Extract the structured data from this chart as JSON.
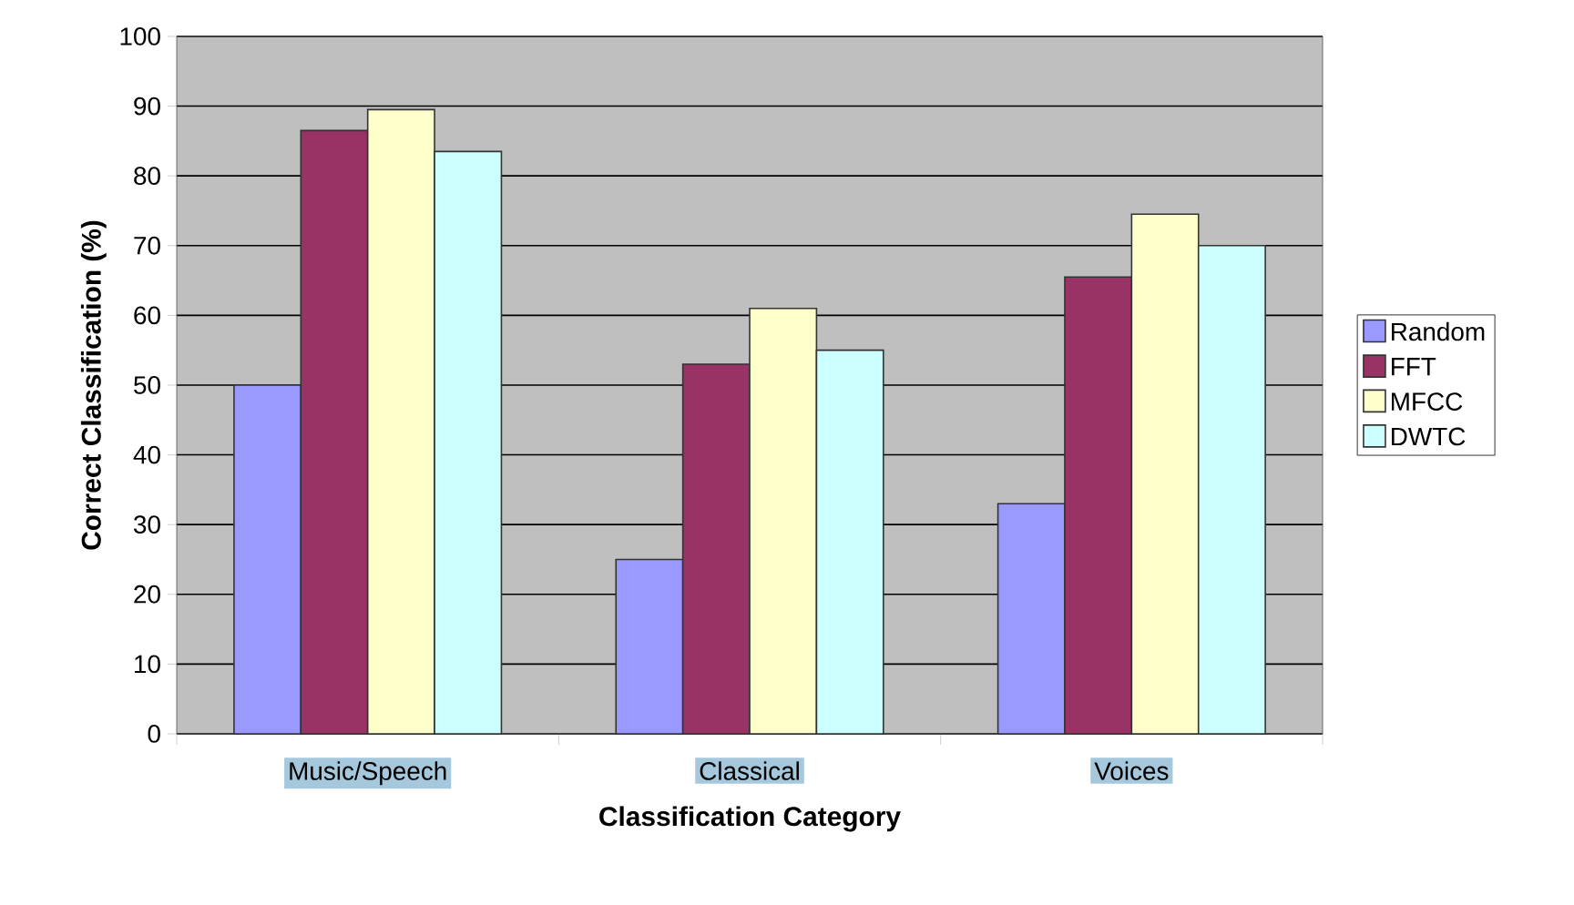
{
  "chart_data": {
    "type": "bar",
    "xlabel": "Classification Category",
    "ylabel": "Correct Classification (%)",
    "categories": [
      "Music/Speech",
      "Classical",
      "Voices"
    ],
    "series": [
      {
        "name": "Random",
        "color": "#9999ff",
        "values": [
          50,
          25,
          33
        ]
      },
      {
        "name": "FFT",
        "color": "#993366",
        "values": [
          86.5,
          53,
          65.5
        ]
      },
      {
        "name": "MFCC",
        "color": "#ffffcc",
        "values": [
          89.5,
          61,
          74.5
        ]
      },
      {
        "name": "DWTC",
        "color": "#ccffff",
        "values": [
          83.5,
          55,
          70
        ]
      }
    ],
    "ylim": [
      0,
      100
    ],
    "yticks": [
      0,
      10,
      20,
      30,
      40,
      50,
      60,
      70,
      80,
      90,
      100
    ],
    "grid": "y",
    "legend": "right"
  }
}
